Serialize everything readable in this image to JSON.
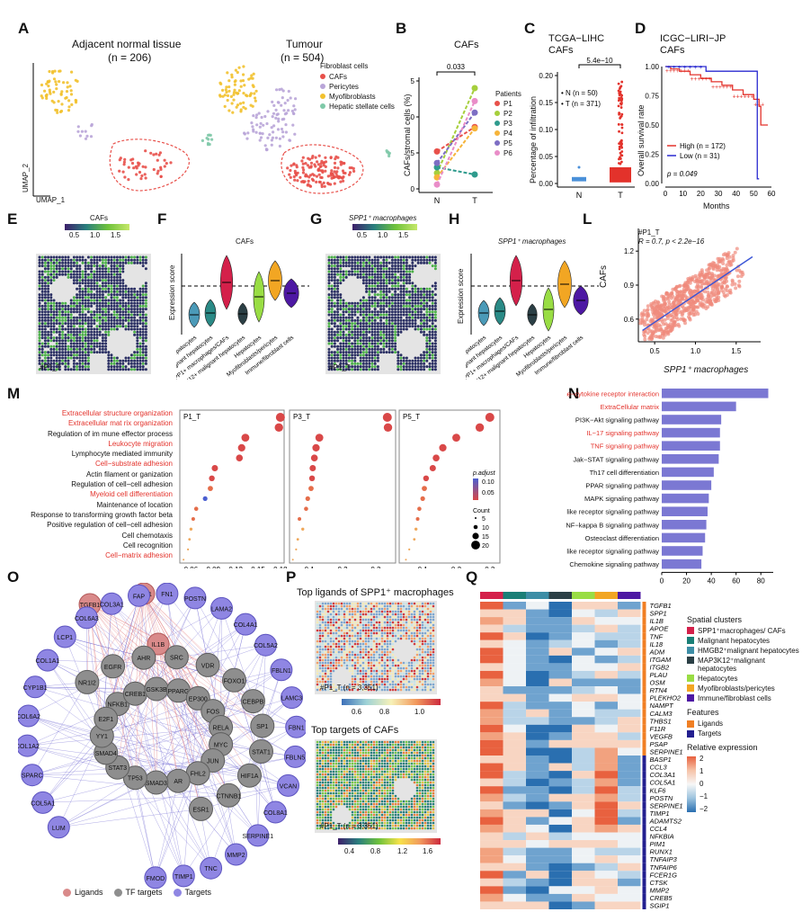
{
  "panels": [
    "A",
    "B",
    "C",
    "D",
    "E",
    "F",
    "G",
    "H",
    "L",
    "M",
    "N",
    "O",
    "P",
    "Q"
  ],
  "A": {
    "title_left": "Adjacent normal tissue",
    "n_left": "(n = 206)",
    "title_right": "Tumour",
    "n_right": "(n = 504)",
    "ylab": "UMAP_2",
    "xlab": "UMAP_1",
    "legend_title": "Fibroblast cells",
    "legend": [
      {
        "label": "CAFs",
        "color": "#e8504a"
      },
      {
        "label": "Pericytes",
        "color": "#b9a5d8"
      },
      {
        "label": "Myofibroblasts",
        "color": "#f2c12e"
      },
      {
        "label": "Hepatic stellate cells",
        "color": "#7fc9a8"
      }
    ]
  },
  "B": {
    "title": "CAFs",
    "pval": "0.033",
    "ylab": "CAFs/stromal cells (%)",
    "legend_title": "Patients",
    "yticks": [
      "0",
      "25",
      "50",
      "75"
    ],
    "xticks": [
      "N",
      "T"
    ],
    "chart_data": {
      "type": "line",
      "x": [
        "N",
        "T"
      ],
      "ylim": [
        0,
        75
      ],
      "series": [
        {
          "name": "P1",
          "color": "#e8504a",
          "values": [
            26,
            43
          ]
        },
        {
          "name": "P2",
          "color": "#a6cf3c",
          "values": [
            11,
            70
          ]
        },
        {
          "name": "P3",
          "color": "#2f9b8d",
          "values": [
            15,
            10
          ]
        },
        {
          "name": "P4",
          "color": "#f6b43a",
          "values": [
            8,
            42
          ]
        },
        {
          "name": "P5",
          "color": "#7d6ec4",
          "values": [
            18,
            53
          ]
        },
        {
          "name": "P6",
          "color": "#e98dc8",
          "values": [
            3,
            61
          ]
        }
      ]
    }
  },
  "C": {
    "title1": "TCGA−LIHC",
    "title2": "CAFs",
    "pval": "5.4e−10",
    "ylab": "Percentage of infiltration",
    "legend": [
      "N (n = 50)",
      "T (n = 371)"
    ],
    "yticks": [
      "0.00",
      "0.05",
      "0.10",
      "0.15",
      "0.20"
    ],
    "xticks": [
      "N",
      "T"
    ]
  },
  "D": {
    "title1": "ICGC−LIRI−JP",
    "title2": "CAFs",
    "ylab": "Overall survival rate",
    "xlab": "Months",
    "pval": "p = 0.049",
    "yticks": [
      "0.00",
      "0.25",
      "0.50",
      "0.75",
      "1.00"
    ],
    "xticks": [
      "0",
      "10",
      "20",
      "30",
      "40",
      "50",
      "60"
    ],
    "legend": [
      {
        "label": "High (n = 172)",
        "color": "#e3322b"
      },
      {
        "label": "Low (n = 31)",
        "color": "#2b2bd0"
      }
    ]
  },
  "E": {
    "title": "CAFs",
    "ticks": [
      "0.5",
      "1.0",
      "1.5"
    ],
    "sample": "#P1_T"
  },
  "F": {
    "title": "CAFs",
    "ylab": "Expression score",
    "cats": [
      "HMGB2+ malignant hepatocytes",
      "Malignant hepatocytes",
      "SPP1+ macrophages/CAFs",
      "MAP3K12+ malignant hepatocytes",
      "Hepatocytes",
      "Myofibroblasts/pericytes",
      "Immune/fibroblast cells"
    ]
  },
  "G": {
    "title": "SPP1⁺ macrophages",
    "ticks": [
      "0.5",
      "1.0",
      "1.5"
    ],
    "sample": "#P1_T"
  },
  "H": {
    "title": "SPP1⁺ macrophages",
    "ylab": "Expression score",
    "cats": [
      "HMGB2+ malignant hepatocytes",
      "Malignant hepatocytes",
      "SPP1+ macrophages/CAFs",
      "MAP3K12+ malignant hepatocytes",
      "Hepatocytes",
      "Myofibroblasts/pericytes",
      "Immune/fibroblast cells"
    ]
  },
  "L": {
    "sample": "#P1_T",
    "stat": "R = 0.7,   p < 2.2e−16",
    "ylab": "CAFs",
    "xlab": "SPP1⁺ macrophages",
    "yticks": [
      "0.6",
      "0.9",
      "1.2"
    ],
    "xticks": [
      "0.5",
      "1.0",
      "1.5"
    ]
  },
  "M": {
    "terms": [
      {
        "label": "Extracellular structure organization",
        "red": true
      },
      {
        "label": "Extracellular mat rix organization",
        "red": true
      },
      {
        "label": "Regulation of im mune effector process",
        "red": false
      },
      {
        "label": "Leukocyte migration",
        "red": true
      },
      {
        "label": "Lymphocyte mediated immunity",
        "red": false
      },
      {
        "label": "Cell−substrate adhesion",
        "red": true
      },
      {
        "label": "Actin filament or ganization",
        "red": false
      },
      {
        "label": "Regulation of cell−cell adhesion",
        "red": false
      },
      {
        "label": "Myeloid cell differentiation",
        "red": true
      },
      {
        "label": "Maintenance of location",
        "red": false
      },
      {
        "label": "Response to transforming growth factor beta",
        "red": false
      },
      {
        "label": "Positive regulation of cell−cell adhesion",
        "red": false
      },
      {
        "label": "Cell chemotaxis",
        "red": false
      },
      {
        "label": "Cell recognition",
        "red": false
      },
      {
        "label": "Cell−matrix adhesion",
        "red": true
      }
    ],
    "facets": [
      {
        "label": "P1_T",
        "ticks": [
          "0.06",
          "0.09",
          "0.12",
          "0.15",
          "0.18"
        ],
        "xr": [
          0.045,
          0.185
        ],
        "vals": [
          0.18,
          0.178,
          0.133,
          0.128,
          0.125,
          0.092,
          0.088,
          0.086,
          0.079,
          0.067,
          0.063,
          0.06,
          0.058,
          0.056,
          0.05
        ]
      },
      {
        "label": "P3_T",
        "ticks": [
          "0.1",
          "0.2",
          "0.3"
        ],
        "xr": [
          0.04,
          0.36
        ],
        "vals": [
          0.335,
          0.337,
          0.13,
          0.12,
          0.115,
          0.11,
          0.108,
          0.105,
          0.095,
          0.09,
          0.07,
          0.08,
          0.065,
          0.06,
          0.05
        ]
      },
      {
        "label": "P5_T",
        "ticks": [
          "0.1",
          "0.2",
          "0.3"
        ],
        "xr": [
          0.03,
          0.33
        ],
        "vals": [
          0.3,
          0.27,
          0.2,
          0.16,
          0.14,
          0.13,
          0.11,
          0.105,
          0.1,
          0.09,
          0.085,
          0.08,
          0.075,
          0.06,
          0.05
        ]
      }
    ],
    "padj_title": "p.adjust",
    "padj_ticks": [
      "0.10",
      "0.05"
    ],
    "count_title": "Count",
    "counts": [
      "5",
      "10",
      "15",
      "20"
    ]
  },
  "N": {
    "xlab": "−Log10(p value)",
    "xticks": [
      "0",
      "20",
      "40",
      "60",
      "80"
    ],
    "chart_data": {
      "type": "bar",
      "categories": [
        "Cytokine−cytokine receptor interaction",
        "ExtraCellular matrix",
        "PI3K−Akt signaling pathway",
        "IL−17 signaling pathway",
        "TNF signaling pathway",
        "Jak−STAT signaling pathway",
        "Th17 cell differentiation",
        "PPAR signaling pathway",
        "MAPK signaling pathway",
        "NOD−like receptor signaling pathway",
        "NF−kappa B signaling pathway",
        "Osteoclast differentiation",
        "Toll−like receptor signaling pathway",
        "Chemokine signaling pathway"
      ],
      "values": [
        86,
        60,
        48,
        47,
        47,
        46,
        42,
        40,
        38,
        37,
        36,
        35,
        33,
        32
      ],
      "red": [
        true,
        true,
        false,
        true,
        true,
        false,
        false,
        false,
        false,
        false,
        false,
        false,
        false,
        false
      ],
      "xlim": [
        0,
        90
      ]
    }
  },
  "O": {
    "ligands": [
      "TGFB1",
      "SPP1",
      "IL1B"
    ],
    "tfs": [
      "NR1I2",
      "EGFR",
      "AHR",
      "SRC",
      "VDR",
      "FOXO1",
      "CEBPB",
      "SP1",
      "STAT1",
      "HIF1A",
      "CTNNB1",
      "ESR1",
      "NFKB1",
      "CREB1",
      "GSK3B",
      "PPARG",
      "EP300",
      "FOS",
      "RELA",
      "MYC",
      "JUN",
      "FHL2",
      "AR",
      "SMAD3",
      "TP53",
      "STAT3",
      "SMAD4",
      "YY1",
      "E2F1"
    ],
    "targets": [
      "LUM",
      "COL5A1",
      "SPARC",
      "COL1A2",
      "COL6A2",
      "CYP1B1",
      "COL1A1",
      "LCP1",
      "COL6A3",
      "COL3A1",
      "FAP",
      "FN1",
      "POSTN",
      "LAMA2",
      "COL4A1",
      "COL5A2",
      "FBLN1",
      "LAMC3",
      "FBN1",
      "FBLN5",
      "VCAN",
      "COL8A1",
      "SERPINE1",
      "MMP2",
      "TNC",
      "TIMP1",
      "FMOD"
    ],
    "legend": [
      "Ligands",
      "TF targets",
      "Targets"
    ]
  },
  "P": {
    "title1": "Top ligands of SPP1⁺ macrophages",
    "sub1": "#P1_T (n = 3,351)",
    "ticks1": [
      "0.6",
      "0.8",
      "1.0"
    ],
    "title2": "Top targets of CAFs",
    "sub2": "#P1_T (n = 3,351)",
    "ticks2": [
      "0.4",
      "0.8",
      "1.2",
      "1.6"
    ]
  },
  "Q": {
    "genes": [
      "TGFB1",
      "SPP1",
      "IL1B",
      "APOE",
      "TNF",
      "IL18",
      "ADM",
      "ITGAM",
      "ITGB2",
      "PLAU",
      "OSM",
      "RTN4",
      "PLEKHO2",
      "NAMPT",
      "CALM3",
      "THBS1",
      "F11R",
      "VEGFB",
      "PSAP",
      "SERPINE1",
      "BASP1",
      "CCL3",
      "COL3A1",
      "COL5A1",
      "KLF6",
      "POSTN",
      "SERPINE1",
      "TIMP1",
      "ADAMTS2",
      "CCL4",
      "NFKBIA",
      "PIM1",
      "RUNX1",
      "TNFAIP3",
      "TNFAIP6",
      "FCER1G",
      "CTSK",
      "MMP2",
      "CREB5",
      "SGIP1"
    ],
    "n_ligands": 20,
    "cluster_colors": [
      "#d4204a",
      "#1a7f77",
      "#3d8ea6",
      "#2b3f45",
      "#99dd44",
      "#f2a623",
      "#4d18a3"
    ],
    "legend_title": "Spatial clusters",
    "clusters": [
      {
        "label": "SPP1⁺macrophages/ CAFs",
        "color": "#d4204a"
      },
      {
        "label": "Malignant hepatocytes",
        "color": "#1a7f77"
      },
      {
        "label": "HMGB2⁺malignant hepatocytes",
        "color": "#3d8ea6"
      },
      {
        "label": "MAP3K12⁺malignant hepatocytes",
        "color": "#2b3f45"
      },
      {
        "label": "Hepatocytes",
        "color": "#99dd44"
      },
      {
        "label": "Myofibroblasts/pericytes",
        "color": "#f2a623"
      },
      {
        "label": "Immune/fibroblast cells",
        "color": "#4d18a3"
      }
    ],
    "features_title": "Features",
    "features": [
      {
        "label": "Ligands",
        "color": "#f07f24"
      },
      {
        "label": "Targets",
        "color": "#231f8f"
      }
    ],
    "relexp_title": "Relative expression",
    "relexp_ticks": [
      "2",
      "1",
      "0",
      "−1",
      "−2"
    ]
  }
}
